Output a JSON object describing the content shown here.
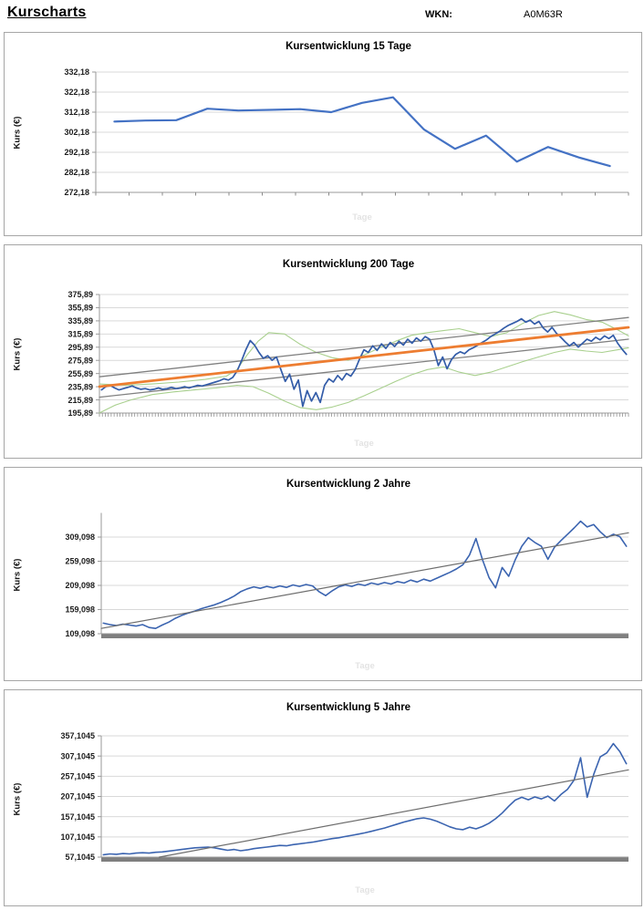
{
  "header": {
    "title": "Kurscharts",
    "wkn_label": "WKN:",
    "wkn_value": "A0M63R"
  },
  "chart_data": [
    {
      "type": "line",
      "title": "Kursentwicklung 15 Tage",
      "ylabel": "Kurs (€)",
      "xlabel": "Tage",
      "y_min": 272.18,
      "y_max": 332.18,
      "grid": true,
      "legend": false,
      "y_tick_labels": [
        "332,18",
        "322,18",
        "312,18",
        "302,18",
        "292,18",
        "282,18",
        "272,18"
      ],
      "y_tick_values": [
        332.18,
        322.18,
        312.18,
        302.18,
        292.18,
        282.18,
        272.18
      ],
      "series": [
        {
          "name": "kurs",
          "color": "#4472C4",
          "width": 2.2,
          "values": [
            307.5,
            308,
            308.2,
            313.9,
            313,
            313.3,
            313.7,
            312.2,
            316.8,
            319.6,
            303.5,
            293.9,
            300.5,
            287.5,
            294.8,
            289.6,
            285.3
          ]
        }
      ]
    },
    {
      "type": "line",
      "title": "Kursentwicklung 200 Tage",
      "ylabel": "Kurs (€)",
      "xlabel": "Tage",
      "y_min": 195.89,
      "y_max": 375.89,
      "grid": true,
      "legend": false,
      "y_tick_labels": [
        "375,89",
        "355,89",
        "335,89",
        "315,89",
        "295,89",
        "275,89",
        "255,89",
        "235,89",
        "215,89",
        "195,89"
      ],
      "y_tick_values": [
        375.89,
        355.89,
        335.89,
        315.89,
        295.89,
        275.89,
        255.89,
        235.89,
        215.89,
        195.89
      ],
      "series": [
        {
          "name": "band_oben",
          "color": "#A9D08E",
          "width": 1.1,
          "x": [
            0,
            5,
            10,
            15,
            20,
            24,
            26,
            28,
            30,
            32,
            35,
            38,
            41,
            44,
            47,
            50,
            53,
            56,
            59,
            62,
            65,
            68,
            71,
            74,
            77,
            80,
            83,
            86,
            89,
            92,
            95,
            98,
            100
          ],
          "values": [
            240,
            238,
            240,
            243,
            247,
            252,
            262,
            285,
            305,
            318,
            316,
            300,
            288,
            280,
            276,
            284,
            295,
            305,
            314,
            318,
            321,
            324,
            318,
            312,
            318,
            332,
            344,
            350,
            345,
            338,
            334,
            322,
            313
          ]
        },
        {
          "name": "band_unten",
          "color": "#A9D08E",
          "width": 1.1,
          "x": [
            0,
            3,
            6,
            10,
            14,
            18,
            22,
            26,
            29,
            32,
            35,
            38,
            41,
            44,
            47,
            50,
            53,
            56,
            59,
            62,
            65,
            68,
            71,
            74,
            77,
            80,
            83,
            86,
            89,
            92,
            95,
            98,
            100
          ],
          "values": [
            196,
            208,
            216,
            224,
            228,
            231,
            234,
            238,
            236,
            226,
            214,
            204,
            201,
            205,
            212,
            222,
            233,
            244,
            254,
            262,
            266,
            258,
            253,
            258,
            266,
            274,
            281,
            288,
            293,
            290,
            288,
            292,
            295
          ]
        },
        {
          "name": "kanal_oben",
          "color": "#808080",
          "width": 1.3,
          "x": [
            0,
            100
          ],
          "values": [
            251,
            341
          ]
        },
        {
          "name": "kanal_unten",
          "color": "#808080",
          "width": 1.3,
          "x": [
            0,
            100
          ],
          "values": [
            220,
            308
          ]
        },
        {
          "name": "kurs",
          "color": "#335CA8",
          "width": 1.7,
          "values": [
            231,
            236,
            238,
            234,
            231,
            233,
            235,
            237,
            234,
            232,
            233,
            231,
            232,
            234,
            232,
            233,
            235,
            233,
            234,
            236,
            234,
            236,
            238,
            237,
            239,
            241,
            243,
            245,
            248,
            246,
            250,
            260,
            275,
            292,
            306,
            299,
            288,
            279,
            283,
            276,
            281,
            262,
            244,
            255,
            232,
            246,
            206,
            230,
            214,
            227,
            212,
            238,
            248,
            243,
            253,
            246,
            256,
            252,
            262,
            278,
            292,
            288,
            298,
            291,
            301,
            294,
            303,
            297,
            305,
            299,
            308,
            302,
            310,
            305,
            312,
            308,
            292,
            268,
            281,
            263,
            277,
            285,
            289,
            286,
            292,
            295,
            299,
            303,
            307,
            312,
            316,
            320,
            325,
            329,
            332,
            335,
            339,
            334,
            337,
            331,
            335,
            325,
            319,
            326,
            317,
            311,
            304,
            298,
            303,
            296,
            302,
            308,
            305,
            311,
            307,
            313,
            309,
            314,
            302,
            293,
            285
          ]
        },
        {
          "name": "trend",
          "color": "#ED7D31",
          "width": 2.8,
          "x": [
            0,
            100
          ],
          "values": [
            236,
            326
          ]
        }
      ]
    },
    {
      "type": "line",
      "title": "Kursentwicklung 2 Jahre",
      "ylabel": "Kurs (€)",
      "xlabel": "Tage",
      "y_min": 109.098,
      "y_max": 359.098,
      "grid": true,
      "legend": false,
      "y_tick_labels": [
        "309,098",
        "259,098",
        "209,098",
        "159,098",
        "109,098"
      ],
      "y_tick_values": [
        309.098,
        259.098,
        209.098,
        159.098,
        109.098
      ],
      "series": [
        {
          "name": "kurs",
          "color": "#3B64B0",
          "width": 1.6,
          "values": [
            131,
            128,
            126,
            129,
            127,
            125,
            128,
            122,
            120,
            127,
            133,
            141,
            147,
            152,
            156,
            161,
            165,
            169,
            174,
            180,
            187,
            196,
            202,
            206,
            203,
            207,
            204,
            208,
            205,
            210,
            207,
            211,
            208,
            196,
            188,
            198,
            206,
            210,
            207,
            212,
            209,
            214,
            211,
            215,
            212,
            217,
            214,
            220,
            216,
            222,
            218,
            224,
            230,
            236,
            243,
            252,
            272,
            306,
            262,
            225,
            204,
            246,
            228,
            262,
            290,
            308,
            298,
            290,
            263,
            288,
            302,
            315,
            328,
            342,
            330,
            335,
            320,
            308,
            315,
            310,
            290
          ]
        },
        {
          "name": "trend",
          "color": "#6E6E6E",
          "width": 1.2,
          "x": [
            0,
            100
          ],
          "values": [
            120,
            318
          ]
        }
      ]
    },
    {
      "type": "line",
      "title": "Kursentwicklung 5 Jahre",
      "ylabel": "Kurs (€)",
      "xlabel": "Tage",
      "y_min": 57.1045,
      "y_max": 357.1045,
      "grid": true,
      "legend": false,
      "y_tick_labels": [
        "357,1045",
        "307,1045",
        "257,1045",
        "207,1045",
        "157,1045",
        "107,1045",
        "57,1045"
      ],
      "y_tick_values": [
        357.1045,
        307.1045,
        257.1045,
        207.1045,
        157.1045,
        107.1045,
        57.1045
      ],
      "series": [
        {
          "name": "kurs",
          "color": "#3B64B0",
          "width": 1.6,
          "values": [
            63,
            65,
            64,
            66,
            65,
            67,
            68,
            67,
            69,
            70,
            72,
            74,
            76,
            78,
            80,
            81,
            82,
            80,
            77,
            74,
            76,
            73,
            75,
            78,
            80,
            82,
            84,
            86,
            85,
            88,
            90,
            92,
            94,
            97,
            100,
            103,
            105,
            108,
            111,
            114,
            117,
            121,
            125,
            129,
            134,
            139,
            144,
            148,
            152,
            154,
            151,
            146,
            139,
            132,
            127,
            125,
            131,
            127,
            133,
            141,
            152,
            166,
            183,
            198,
            205,
            199,
            206,
            201,
            208,
            196,
            212,
            225,
            248,
            303,
            205,
            262,
            305,
            315,
            338,
            318,
            288
          ]
        },
        {
          "name": "trend",
          "color": "#6E6E6E",
          "width": 1.2,
          "x": [
            11,
            100
          ],
          "values": [
            57.1,
            273
          ]
        }
      ]
    }
  ]
}
